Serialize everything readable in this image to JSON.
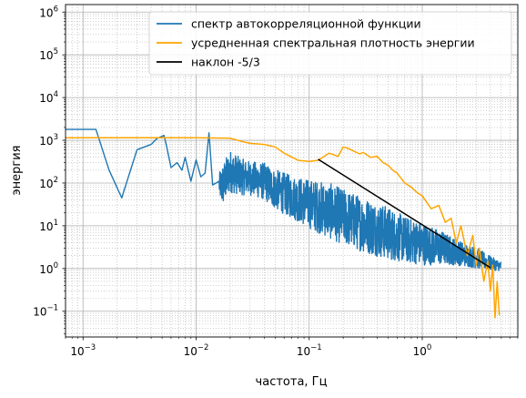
{
  "chart_data": {
    "type": "line",
    "title": "",
    "xlabel": "частота, Гц",
    "ylabel": "энергия",
    "xscale": "log",
    "yscale": "log",
    "xlim": [
      0.0007,
      7
    ],
    "ylim": [
      0.025,
      1500000
    ],
    "x_ticks": [
      {
        "value": 0.001,
        "base": "10",
        "exp": "−3"
      },
      {
        "value": 0.01,
        "base": "10",
        "exp": "−2"
      },
      {
        "value": 0.1,
        "base": "10",
        "exp": "−1"
      },
      {
        "value": 1,
        "base": "10",
        "exp": "0"
      }
    ],
    "y_ticks": [
      {
        "value": 0.1,
        "base": "10",
        "exp": "−1"
      },
      {
        "value": 1,
        "base": "10",
        "exp": "0"
      },
      {
        "value": 10,
        "base": "10",
        "exp": "1"
      },
      {
        "value": 100,
        "base": "10",
        "exp": "2"
      },
      {
        "value": 1000,
        "base": "10",
        "exp": "3"
      },
      {
        "value": 10000,
        "base": "10",
        "exp": "4"
      },
      {
        "value": 100000,
        "base": "10",
        "exp": "5"
      },
      {
        "value": 1000000,
        "base": "10",
        "exp": "6"
      }
    ],
    "grid": {
      "major": "solid",
      "minor": "dotted"
    },
    "legend_position": "top-right",
    "series": [
      {
        "name": "спектр автокорреляционной функции",
        "color": "#1f77b4",
        "noisy": true,
        "x": [
          0.0007,
          0.0013,
          0.0017,
          0.0022,
          0.003,
          0.004,
          0.0045,
          0.0052,
          0.0055,
          0.006,
          0.0068,
          0.0075,
          0.008,
          0.009,
          0.01,
          0.011,
          0.012,
          0.013,
          0.014,
          0.015,
          0.017,
          0.02,
          0.025,
          0.03,
          0.04,
          0.05,
          0.07,
          0.1,
          0.15,
          0.2,
          0.3,
          0.5,
          0.7,
          1,
          1.5,
          2,
          3,
          4,
          5
        ],
        "y": [
          1800,
          1800,
          200,
          45,
          600,
          800,
          1100,
          1300,
          700,
          230,
          300,
          200,
          400,
          110,
          350,
          140,
          170,
          1500,
          90,
          100,
          90,
          200,
          150,
          130,
          100,
          70,
          50,
          35,
          25,
          18,
          12,
          8,
          5.5,
          4,
          3,
          2.4,
          1.7,
          1.3,
          1.1
        ],
        "noise_lo": [
          1,
          1,
          1,
          1,
          1,
          1,
          1,
          1,
          1,
          1,
          1,
          1,
          1,
          1,
          1,
          1,
          1,
          1,
          1,
          1,
          0.3,
          0.3,
          0.35,
          0.4,
          0.4,
          0.35,
          0.3,
          0.25,
          0.2,
          0.2,
          0.2,
          0.2,
          0.25,
          0.3,
          0.4,
          0.5,
          0.6,
          0.7,
          0.8
        ],
        "noise_hi": [
          1,
          1,
          1,
          1,
          1,
          1,
          1,
          1,
          1,
          1,
          1,
          1,
          1,
          1,
          1,
          1,
          1,
          1,
          1,
          1,
          3,
          3,
          2.5,
          2.5,
          3,
          3,
          3,
          3.5,
          4,
          4,
          4,
          3.5,
          3,
          3,
          2.5,
          2,
          1.8,
          1.5,
          1.3
        ]
      },
      {
        "name": "усредненная спектральная плотность энергии",
        "color": "#ffa500",
        "noisy": false,
        "x": [
          0.0007,
          0.002,
          0.005,
          0.01,
          0.02,
          0.025,
          0.03,
          0.04,
          0.05,
          0.06,
          0.08,
          0.1,
          0.12,
          0.15,
          0.18,
          0.2,
          0.22,
          0.25,
          0.28,
          0.3,
          0.35,
          0.4,
          0.45,
          0.5,
          0.55,
          0.6,
          0.7,
          0.8,
          0.9,
          1,
          1.2,
          1.4,
          1.6,
          1.8,
          2,
          2.2,
          2.5,
          2.8,
          3,
          3.2,
          3.5,
          3.8,
          4,
          4.2,
          4.4,
          4.6,
          4.8
        ],
        "y": [
          1150,
          1150,
          1150,
          1150,
          1120,
          950,
          850,
          800,
          700,
          500,
          340,
          320,
          340,
          500,
          420,
          700,
          650,
          550,
          480,
          520,
          400,
          420,
          300,
          260,
          200,
          170,
          100,
          80,
          60,
          50,
          25,
          30,
          12,
          15,
          4,
          10,
          2,
          6,
          1.2,
          3,
          0.5,
          1.5,
          0.3,
          1.2,
          0.07,
          0.5,
          0.08
        ]
      },
      {
        "name": "наклон -5/3",
        "color": "#000000",
        "noisy": false,
        "x": [
          0.12,
          4.0
        ],
        "y": [
          360,
          1.05
        ]
      }
    ]
  }
}
